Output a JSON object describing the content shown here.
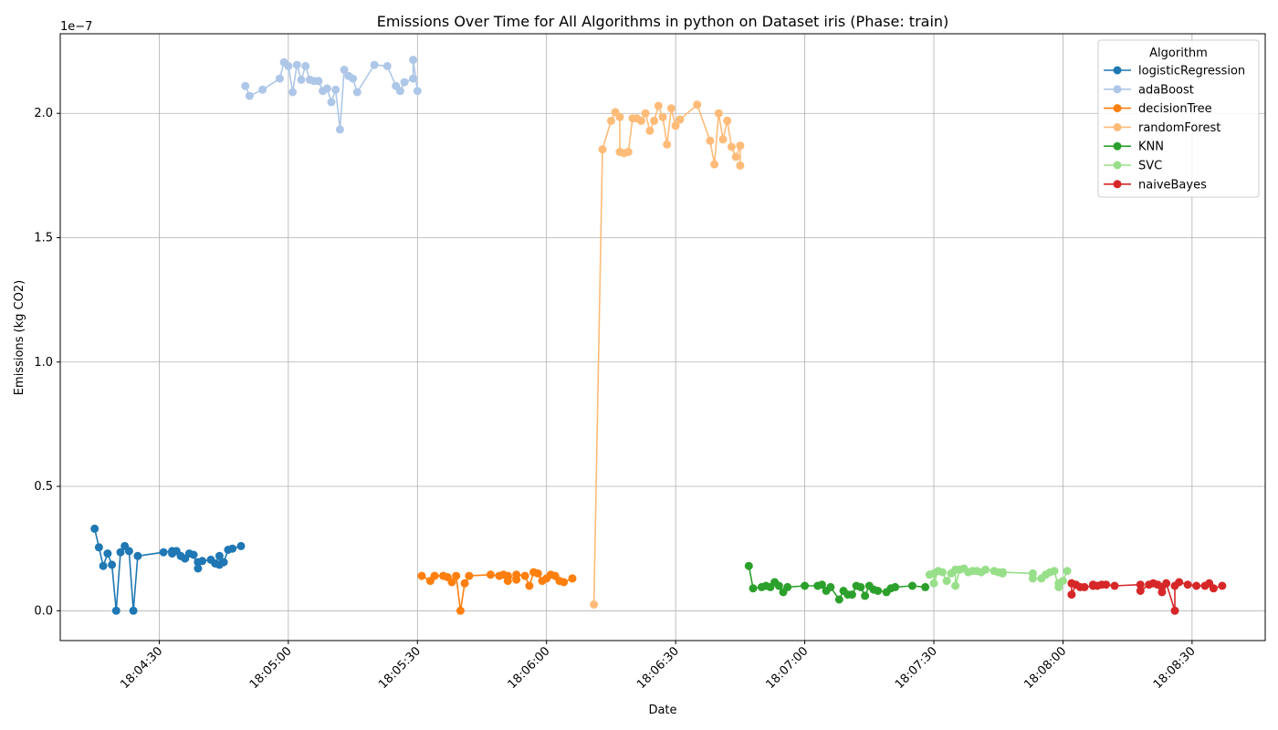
{
  "chart_data": {
    "type": "line",
    "title": "Emissions Over Time for All Algorithms in python on Dataset iris (Phase: train)",
    "xlabel": "Date",
    "ylabel": "Emissions (kg CO2)",
    "y_offset_label": "1e−7",
    "grid": true,
    "legend_title": "Algorithm",
    "legend_position": "upper right",
    "xlim": [
      "18:04:07",
      "18:08:47"
    ],
    "ylim": [
      -1.2,
      23.2
    ],
    "y_ticks": [
      0.0,
      5.0,
      10.0,
      15.0,
      20.0
    ],
    "y_tick_labels": [
      "0.0",
      "0.5",
      "1.0",
      "1.5",
      "2.0"
    ],
    "x_ticks": [
      "18:04:30",
      "18:05:00",
      "18:05:30",
      "18:06:00",
      "18:06:30",
      "18:07:00",
      "18:07:30",
      "18:08:00",
      "18:08:30"
    ],
    "series": [
      {
        "name": "logisticRegression",
        "color": "#1f77b4",
        "points": [
          [
            "18:04:15",
            3.3
          ],
          [
            "18:04:16",
            2.55
          ],
          [
            "18:04:17",
            1.8
          ],
          [
            "18:04:18",
            2.3
          ],
          [
            "18:04:19",
            1.85
          ],
          [
            "18:04:20",
            0.0
          ],
          [
            "18:04:21",
            2.35
          ],
          [
            "18:04:22",
            2.6
          ],
          [
            "18:04:23",
            2.4
          ],
          [
            "18:04:24",
            0.0
          ],
          [
            "18:04:25",
            2.2
          ],
          [
            "18:04:31",
            2.35
          ],
          [
            "18:04:33",
            2.4
          ],
          [
            "18:04:33",
            2.3
          ],
          [
            "18:04:34",
            2.4
          ],
          [
            "18:04:35",
            2.2
          ],
          [
            "18:04:36",
            2.1
          ],
          [
            "18:04:37",
            2.3
          ],
          [
            "18:04:38",
            2.25
          ],
          [
            "18:04:39",
            1.7
          ],
          [
            "18:04:39",
            1.95
          ],
          [
            "18:04:40",
            2.0
          ],
          [
            "18:04:42",
            2.05
          ],
          [
            "18:04:43",
            1.9
          ],
          [
            "18:04:44",
            2.2
          ],
          [
            "18:04:44",
            1.85
          ],
          [
            "18:04:45",
            1.95
          ],
          [
            "18:04:46",
            2.45
          ],
          [
            "18:04:47",
            2.5
          ],
          [
            "18:04:49",
            2.6
          ]
        ]
      },
      {
        "name": "adaBoost",
        "color": "#aec7e8",
        "points": [
          [
            "18:04:50",
            21.1
          ],
          [
            "18:04:51",
            20.7
          ],
          [
            "18:04:54",
            20.95
          ],
          [
            "18:04:58",
            21.4
          ],
          [
            "18:04:59",
            22.05
          ],
          [
            "18:05:00",
            21.9
          ],
          [
            "18:05:01",
            20.85
          ],
          [
            "18:05:02",
            21.95
          ],
          [
            "18:05:03",
            21.35
          ],
          [
            "18:05:04",
            21.9
          ],
          [
            "18:05:05",
            21.35
          ],
          [
            "18:05:06",
            21.3
          ],
          [
            "18:05:07",
            21.3
          ],
          [
            "18:05:08",
            20.9
          ],
          [
            "18:05:09",
            21.0
          ],
          [
            "18:05:10",
            20.45
          ],
          [
            "18:05:11",
            20.95
          ],
          [
            "18:05:12",
            19.35
          ],
          [
            "18:05:13",
            21.75
          ],
          [
            "18:05:14",
            21.5
          ],
          [
            "18:05:15",
            21.4
          ],
          [
            "18:05:16",
            20.85
          ],
          [
            "18:05:20",
            21.95
          ],
          [
            "18:05:23",
            21.9
          ],
          [
            "18:05:25",
            21.1
          ],
          [
            "18:05:26",
            20.9
          ],
          [
            "18:05:27",
            21.25
          ],
          [
            "18:05:29",
            21.4
          ],
          [
            "18:05:29",
            22.15
          ],
          [
            "18:05:30",
            20.9
          ]
        ]
      },
      {
        "name": "decisionTree",
        "color": "#ff7f0e",
        "points": [
          [
            "18:05:31",
            1.4
          ],
          [
            "18:05:33",
            1.2
          ],
          [
            "18:05:34",
            1.4
          ],
          [
            "18:05:36",
            1.4
          ],
          [
            "18:05:37",
            1.35
          ],
          [
            "18:05:38",
            1.15
          ],
          [
            "18:05:39",
            1.4
          ],
          [
            "18:05:40",
            0.0
          ],
          [
            "18:05:41",
            1.1
          ],
          [
            "18:05:42",
            1.4
          ],
          [
            "18:05:47",
            1.45
          ],
          [
            "18:05:49",
            1.4
          ],
          [
            "18:05:50",
            1.45
          ],
          [
            "18:05:51",
            1.2
          ],
          [
            "18:05:51",
            1.4
          ],
          [
            "18:05:53",
            1.25
          ],
          [
            "18:05:53",
            1.45
          ],
          [
            "18:05:55",
            1.4
          ],
          [
            "18:05:56",
            1.0
          ],
          [
            "18:05:57",
            1.55
          ],
          [
            "18:05:58",
            1.5
          ],
          [
            "18:05:59",
            1.2
          ],
          [
            "18:06:00",
            1.3
          ],
          [
            "18:06:01",
            1.45
          ],
          [
            "18:06:02",
            1.4
          ],
          [
            "18:06:03",
            1.2
          ],
          [
            "18:06:04",
            1.15
          ],
          [
            "18:06:06",
            1.3
          ]
        ]
      },
      {
        "name": "randomForest",
        "color": "#ffbb78",
        "points": [
          [
            "18:06:11",
            0.25
          ],
          [
            "18:06:13",
            18.55
          ],
          [
            "18:06:15",
            19.7
          ],
          [
            "18:06:16",
            20.05
          ],
          [
            "18:06:17",
            19.85
          ],
          [
            "18:06:17",
            18.45
          ],
          [
            "18:06:18",
            18.4
          ],
          [
            "18:06:19",
            18.45
          ],
          [
            "18:06:20",
            19.8
          ],
          [
            "18:06:21",
            19.8
          ],
          [
            "18:06:22",
            19.7
          ],
          [
            "18:06:23",
            20.0
          ],
          [
            "18:06:24",
            19.3
          ],
          [
            "18:06:25",
            19.7
          ],
          [
            "18:06:26",
            20.3
          ],
          [
            "18:06:27",
            19.85
          ],
          [
            "18:06:28",
            18.75
          ],
          [
            "18:06:29",
            20.2
          ],
          [
            "18:06:30",
            19.5
          ],
          [
            "18:06:31",
            19.75
          ],
          [
            "18:06:35",
            20.35
          ],
          [
            "18:06:38",
            18.9
          ],
          [
            "18:06:39",
            17.95
          ],
          [
            "18:06:40",
            20.0
          ],
          [
            "18:06:41",
            18.95
          ],
          [
            "18:06:42",
            19.7
          ],
          [
            "18:06:43",
            18.65
          ],
          [
            "18:06:44",
            18.25
          ],
          [
            "18:06:45",
            18.7
          ],
          [
            "18:06:45",
            17.9
          ]
        ]
      },
      {
        "name": "KNN",
        "color": "#2ca02c",
        "points": [
          [
            "18:06:47",
            1.8
          ],
          [
            "18:06:48",
            0.9
          ],
          [
            "18:06:50",
            0.95
          ],
          [
            "18:06:51",
            1.0
          ],
          [
            "18:06:52",
            0.95
          ],
          [
            "18:06:53",
            1.15
          ],
          [
            "18:06:54",
            1.0
          ],
          [
            "18:06:55",
            0.75
          ],
          [
            "18:06:56",
            0.95
          ],
          [
            "18:07:00",
            1.0
          ],
          [
            "18:07:03",
            1.0
          ],
          [
            "18:07:04",
            1.05
          ],
          [
            "18:07:05",
            0.8
          ],
          [
            "18:07:06",
            0.95
          ],
          [
            "18:07:08",
            0.45
          ],
          [
            "18:07:09",
            0.8
          ],
          [
            "18:07:10",
            0.65
          ],
          [
            "18:07:11",
            0.65
          ],
          [
            "18:07:12",
            1.0
          ],
          [
            "18:07:13",
            0.95
          ],
          [
            "18:07:14",
            0.6
          ],
          [
            "18:07:15",
            1.0
          ],
          [
            "18:07:16",
            0.85
          ],
          [
            "18:07:17",
            0.8
          ],
          [
            "18:07:19",
            0.75
          ],
          [
            "18:07:20",
            0.9
          ],
          [
            "18:07:21",
            0.95
          ],
          [
            "18:07:25",
            1.0
          ],
          [
            "18:07:28",
            0.95
          ]
        ]
      },
      {
        "name": "SVC",
        "color": "#98df8a",
        "points": [
          [
            "18:07:29",
            1.45
          ],
          [
            "18:07:30",
            1.5
          ],
          [
            "18:07:30",
            1.1
          ],
          [
            "18:07:31",
            1.6
          ],
          [
            "18:07:32",
            1.55
          ],
          [
            "18:07:33",
            1.2
          ],
          [
            "18:07:34",
            1.5
          ],
          [
            "18:07:35",
            1.65
          ],
          [
            "18:07:35",
            1.0
          ],
          [
            "18:07:36",
            1.65
          ],
          [
            "18:07:37",
            1.7
          ],
          [
            "18:07:38",
            1.55
          ],
          [
            "18:07:39",
            1.6
          ],
          [
            "18:07:40",
            1.6
          ],
          [
            "18:07:41",
            1.55
          ],
          [
            "18:07:42",
            1.65
          ],
          [
            "18:07:44",
            1.6
          ],
          [
            "18:07:45",
            1.55
          ],
          [
            "18:07:46",
            1.5
          ],
          [
            "18:07:46",
            1.55
          ],
          [
            "18:07:53",
            1.5
          ],
          [
            "18:07:53",
            1.3
          ],
          [
            "18:07:55",
            1.3
          ],
          [
            "18:07:56",
            1.45
          ],
          [
            "18:07:57",
            1.55
          ],
          [
            "18:07:58",
            1.6
          ],
          [
            "18:07:59",
            0.95
          ],
          [
            "18:07:59",
            1.1
          ],
          [
            "18:08:00",
            1.2
          ],
          [
            "18:08:01",
            1.6
          ]
        ]
      },
      {
        "name": "naiveBayes",
        "color": "#d62728",
        "points": [
          [
            "18:08:02",
            1.1
          ],
          [
            "18:08:02",
            0.65
          ],
          [
            "18:08:03",
            1.05
          ],
          [
            "18:08:04",
            0.95
          ],
          [
            "18:08:05",
            0.95
          ],
          [
            "18:08:07",
            1.0
          ],
          [
            "18:08:07",
            1.05
          ],
          [
            "18:08:08",
            1.0
          ],
          [
            "18:08:09",
            1.05
          ],
          [
            "18:08:10",
            1.05
          ],
          [
            "18:08:12",
            1.0
          ],
          [
            "18:08:18",
            1.05
          ],
          [
            "18:08:18",
            0.8
          ],
          [
            "18:08:20",
            1.05
          ],
          [
            "18:08:21",
            1.1
          ],
          [
            "18:08:22",
            1.05
          ],
          [
            "18:08:23",
            0.95
          ],
          [
            "18:08:23",
            0.75
          ],
          [
            "18:08:24",
            1.1
          ],
          [
            "18:08:26",
            0.0
          ],
          [
            "18:08:26",
            1.0
          ],
          [
            "18:08:27",
            1.15
          ],
          [
            "18:08:29",
            1.05
          ],
          [
            "18:08:31",
            1.0
          ],
          [
            "18:08:33",
            1.0
          ],
          [
            "18:08:34",
            1.1
          ],
          [
            "18:08:35",
            0.9
          ],
          [
            "18:08:37",
            1.0
          ]
        ]
      }
    ]
  }
}
